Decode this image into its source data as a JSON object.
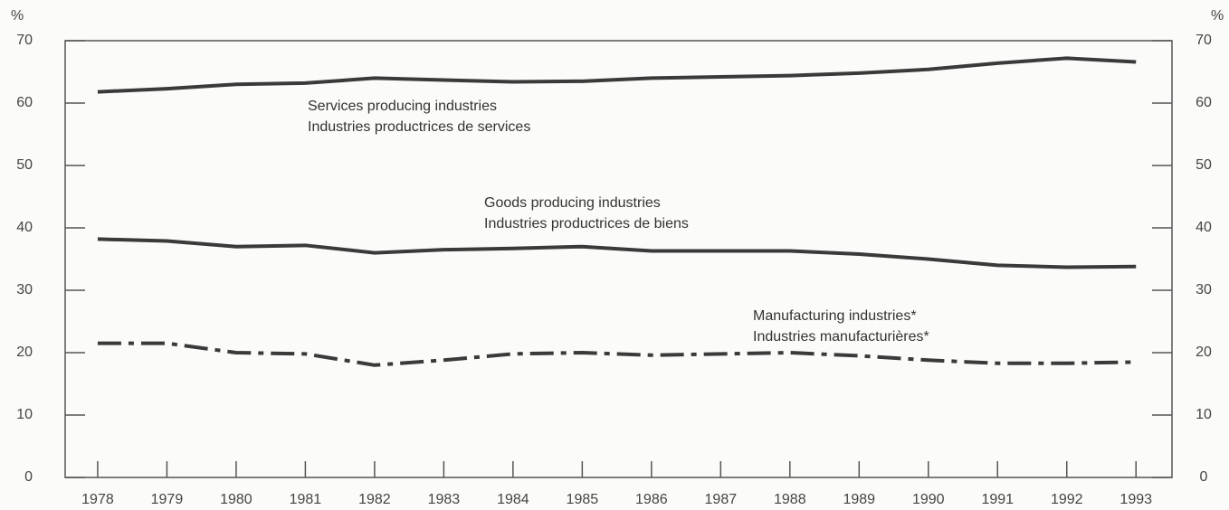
{
  "chart_data": {
    "type": "line",
    "y_unit": "%",
    "x": [
      1978,
      1979,
      1980,
      1981,
      1982,
      1983,
      1984,
      1985,
      1986,
      1987,
      1988,
      1989,
      1990,
      1991,
      1992,
      1993
    ],
    "xlim": [
      1977.53,
      1993.52
    ],
    "ylim": [
      0,
      70
    ],
    "yticks": [
      0,
      10,
      20,
      30,
      40,
      50,
      60,
      70
    ],
    "series": [
      {
        "label_lines": [
          "Services producing industries",
          "Industries productrices de services"
        ],
        "color": "#3a3a3a",
        "style": "solid",
        "values": [
          61.8,
          62.3,
          63.0,
          63.2,
          64.0,
          63.7,
          63.4,
          63.5,
          64.0,
          64.2,
          64.4,
          64.8,
          65.4,
          66.4,
          67.2,
          66.6
        ]
      },
      {
        "label_lines": [
          "Goods producing industries",
          "Industries productrices de biens"
        ],
        "color": "#3a3a3a",
        "style": "solid",
        "values": [
          38.2,
          37.9,
          37.0,
          37.2,
          36.0,
          36.5,
          36.7,
          37.0,
          36.3,
          36.3,
          36.3,
          35.8,
          35.0,
          34.0,
          33.7,
          33.8
        ]
      },
      {
        "label_lines": [
          "Manufacturing industries*",
          "Industries manufacturières*"
        ],
        "color": "#3a3a3a",
        "style": "dashdot",
        "values": [
          21.5,
          21.5,
          20.0,
          19.8,
          18.0,
          18.8,
          19.8,
          20.0,
          19.6,
          19.8,
          20.0,
          19.5,
          18.8,
          18.3,
          18.3,
          18.5
        ]
      }
    ]
  }
}
